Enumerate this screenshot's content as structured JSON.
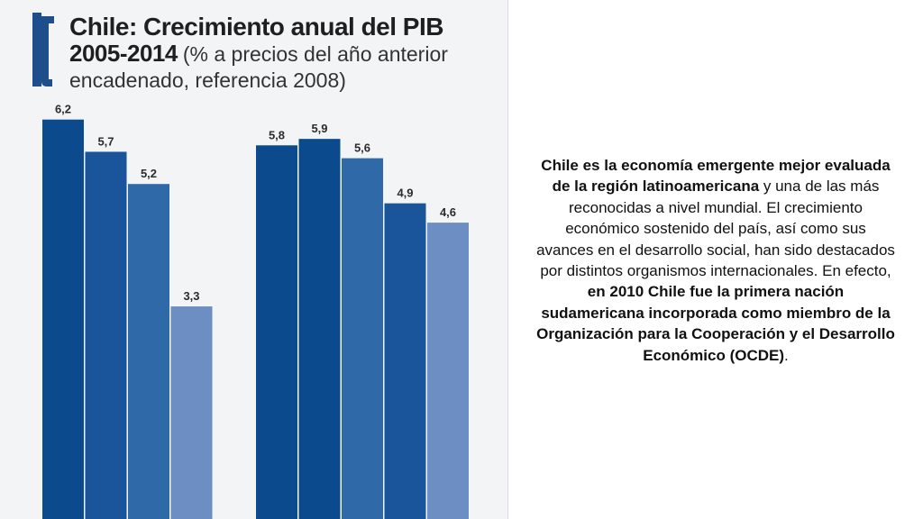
{
  "chart_data": {
    "type": "bar",
    "title_line1": "Chile: Crecimiento anual del PIB",
    "title_line2_bold": "2005-2014",
    "title_line2_regular": "(% a precios del año anterior",
    "title_line3": "encadenado, referencia 2008)",
    "xlabel": "",
    "ylabel": "",
    "ylim": [
      0,
      6.5
    ],
    "groups": [
      {
        "values": [
          6.2,
          5.7,
          5.2,
          3.3
        ],
        "labels": [
          "6,2",
          "5,7",
          "5,2",
          "3,3"
        ]
      },
      {
        "values": [
          5.8,
          5.9,
          5.6,
          4.9,
          4.6
        ],
        "labels": [
          "5,8",
          "5,9",
          "5,6",
          "4,9",
          "4,6"
        ]
      }
    ],
    "colors": [
      "#0b4a8c",
      "#1a559c",
      "#3069a8",
      "#6c8ec2"
    ],
    "colors_group2": [
      "#0b4a8c",
      "#0b4a8c",
      "#3069a8",
      "#1a559c",
      "#6c8ec2"
    ]
  },
  "text_panel": {
    "p1_bold": "Chile es la economía emergente mejor evaluada de la región latinoamericana",
    "p2": " y una de las más reconocidas a nivel mundial. El crecimiento económico sostenido del país, así como sus avances en el desarrollo social, han sido destacados por distintos organismos internacionales. En efecto, ",
    "p3_bold": "en 2010 Chile fue la primera nación sudamericana incorporada como miembro de la Organización para la Cooperación y el Desarrollo Económico (OCDE)",
    "p4": "."
  },
  "accent_color": "#1f4e8c"
}
